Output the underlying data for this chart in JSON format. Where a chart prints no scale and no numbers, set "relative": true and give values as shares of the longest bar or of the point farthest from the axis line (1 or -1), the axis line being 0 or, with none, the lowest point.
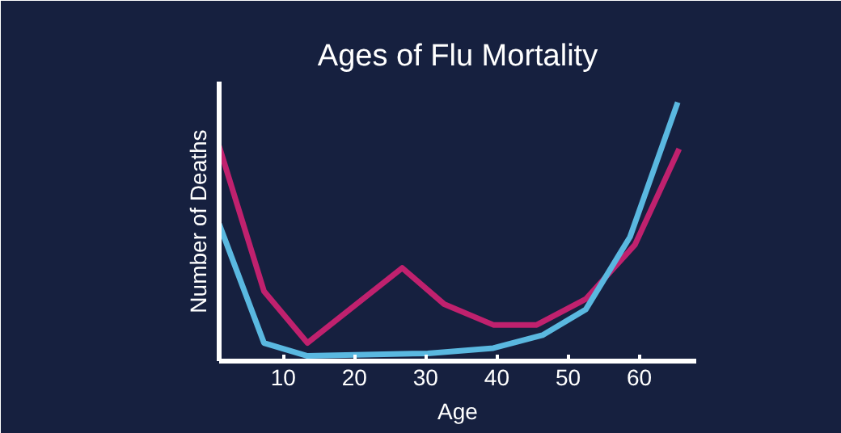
{
  "chart_data": {
    "type": "line",
    "title": "Ages of Flu Mortality",
    "xlabel": "Age",
    "ylabel": "Number of Deaths",
    "relative": true,
    "xlim": [
      1,
      68
    ],
    "xticks": [
      10,
      20,
      30,
      40,
      50,
      60
    ],
    "grid": false,
    "marker": "none",
    "line_style": "solid",
    "series": [
      {
        "color": "#c0216e",
        "x": [
          1,
          7.3,
          13.4,
          26.7,
          32.6,
          39.5,
          45.6,
          52.5,
          59.4,
          65.6
        ],
        "values": [
          0.83,
          0.27,
          0.07,
          0.36,
          0.22,
          0.14,
          0.14,
          0.24,
          0.45,
          0.82
        ]
      },
      {
        "color": "#5ab8e0",
        "x": [
          1,
          7.3,
          13.4,
          30.3,
          39.5,
          46.4,
          52.5,
          58.7,
          65.4
        ],
        "values": [
          0.53,
          0.07,
          0.02,
          0.03,
          0.05,
          0.1,
          0.2,
          0.48,
          1.0
        ]
      }
    ]
  }
}
